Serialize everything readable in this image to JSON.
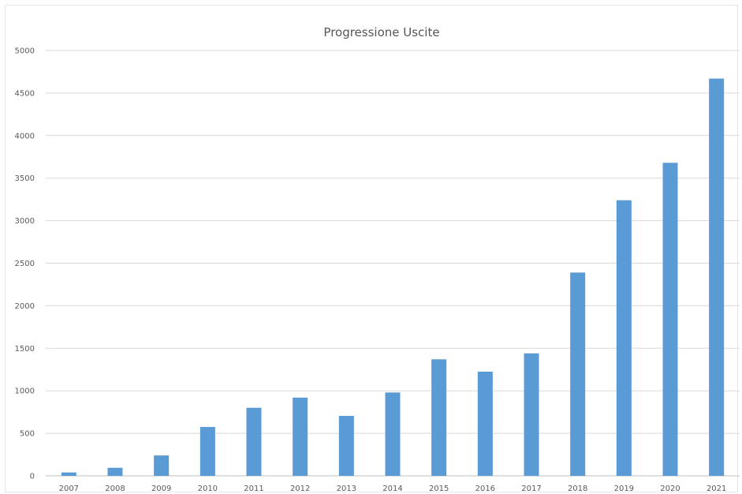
{
  "chart_data": {
    "type": "bar",
    "title": "Progressione Uscite",
    "xlabel": "",
    "ylabel": "",
    "categories": [
      "2007",
      "2008",
      "2009",
      "2010",
      "2011",
      "2012",
      "2013",
      "2014",
      "2015",
      "2016",
      "2017",
      "2018",
      "2019",
      "2020",
      "2021"
    ],
    "values": [
      40,
      95,
      240,
      575,
      800,
      920,
      705,
      980,
      1370,
      1225,
      1440,
      2390,
      3240,
      3680,
      4670
    ],
    "ylim": [
      0,
      5000
    ],
    "yticks": [
      0,
      500,
      1000,
      1500,
      2000,
      2500,
      3000,
      3500,
      4000,
      4500,
      5000
    ],
    "grid": true,
    "legend": "none",
    "bar_color": "#5b9bd5"
  }
}
